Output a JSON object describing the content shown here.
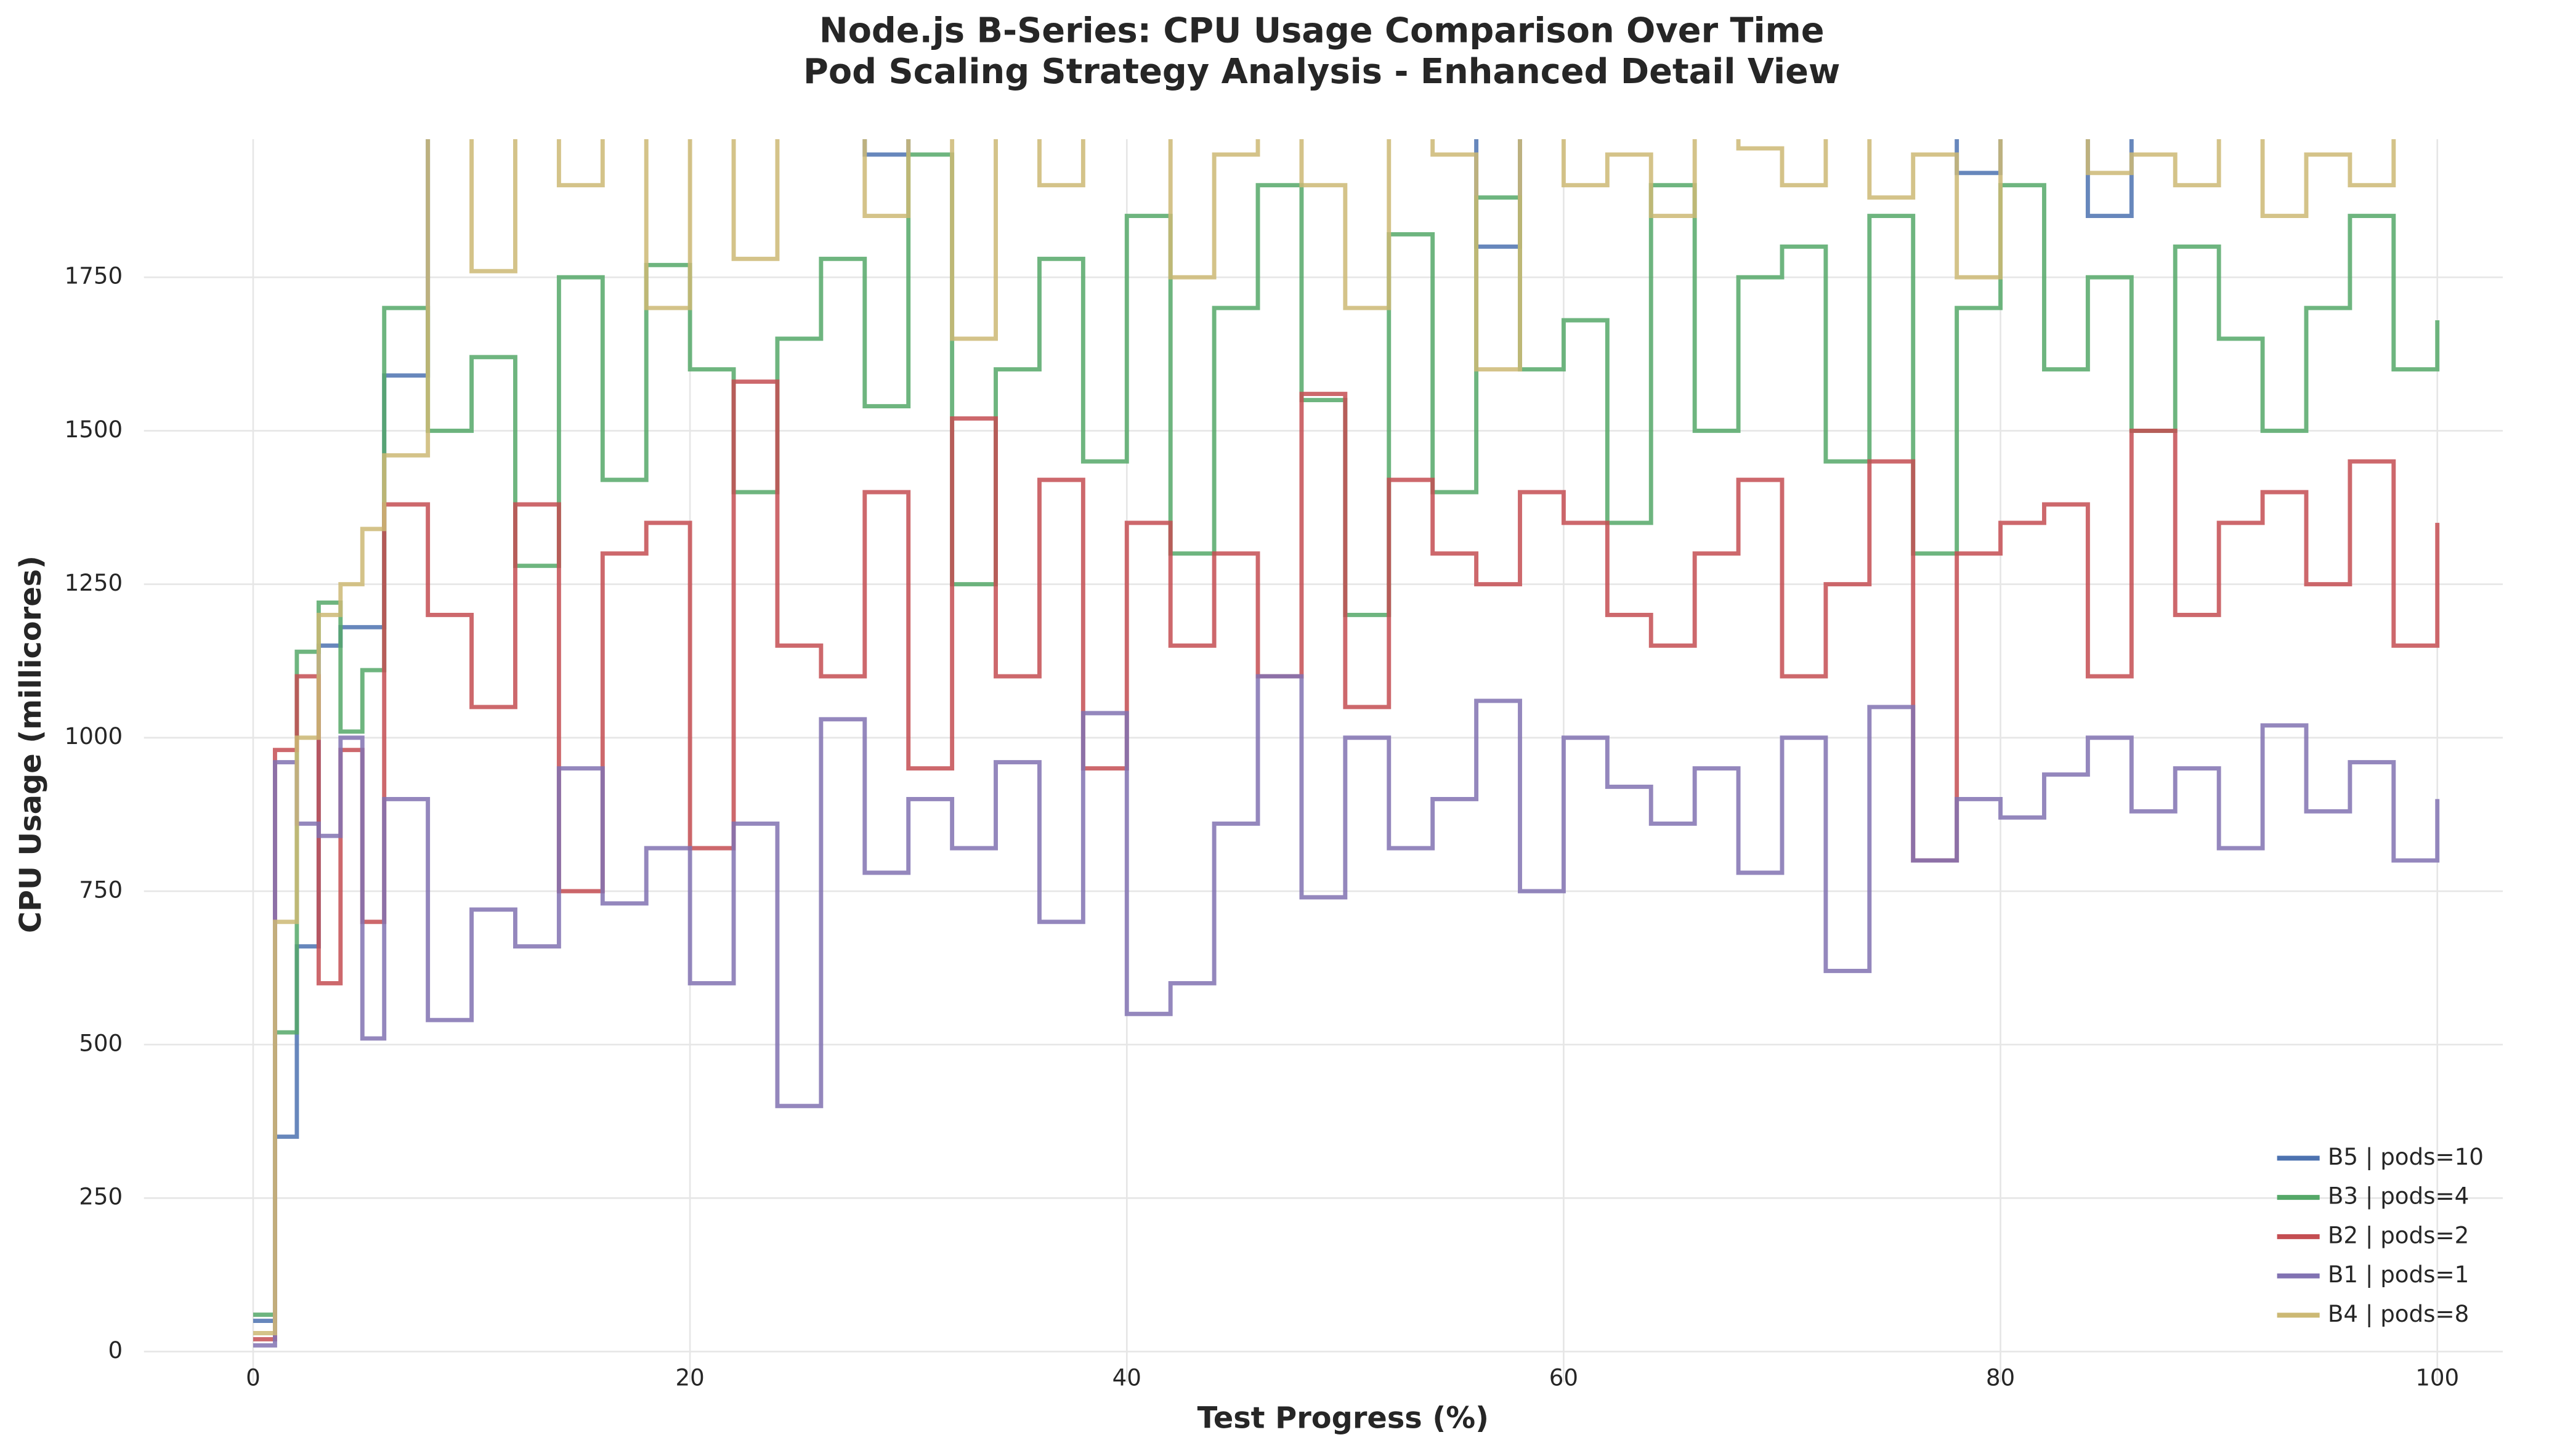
{
  "chart_data": {
    "type": "step",
    "title": "Node.js B-Series: CPU Usage Comparison Over Time",
    "subtitle": "Pod Scaling Strategy Analysis - Enhanced Detail View",
    "x_label": "Test Progress (%)",
    "y_label": "CPU Usage (millicores)",
    "x": [
      0,
      1,
      2,
      3,
      4,
      5,
      6,
      8,
      10,
      12,
      14,
      16,
      18,
      20,
      22,
      24,
      26,
      28,
      30,
      32,
      34,
      36,
      38,
      40,
      42,
      44,
      46,
      48,
      50,
      52,
      54,
      56,
      58,
      60,
      62,
      64,
      66,
      68,
      70,
      72,
      74,
      76,
      78,
      80,
      82,
      84,
      86,
      88,
      90,
      92,
      94,
      96,
      98,
      100
    ],
    "series": [
      {
        "name": "B5 | pods=10",
        "color": "#4c72b0",
        "values": [
          50,
          350,
          660,
          1150,
          1180,
          1180,
          1590,
          2050,
          2100,
          2080,
          2060,
          2100,
          2050,
          2080,
          2070,
          2100,
          2090,
          1950,
          2080,
          2060,
          2100,
          2070,
          2080,
          2050,
          2090,
          2100,
          2070,
          2080,
          2060,
          2080,
          2090,
          1800,
          2050,
          2080,
          2070,
          2090,
          2100,
          2060,
          2080,
          2070,
          2080,
          2050,
          1920,
          2090,
          2070,
          1850,
          2080,
          2090,
          2060,
          2080,
          2100,
          2070,
          2050,
          2080
        ]
      },
      {
        "name": "B3 | pods=4",
        "color": "#55a868",
        "values": [
          60,
          520,
          1140,
          1220,
          1010,
          1110,
          1700,
          1500,
          1620,
          1280,
          1750,
          1420,
          1770,
          1600,
          1400,
          1650,
          1780,
          1540,
          1950,
          1250,
          1600,
          1780,
          1450,
          1850,
          1300,
          1700,
          1900,
          1550,
          1200,
          1820,
          1400,
          1880,
          1600,
          1680,
          1350,
          1900,
          1500,
          1750,
          1800,
          1450,
          1850,
          1300,
          1700,
          1900,
          1600,
          1750,
          1500,
          1800,
          1650,
          1500,
          1700,
          1850,
          1600,
          1680
        ]
      },
      {
        "name": "B2 | pods=2",
        "color": "#c44e52",
        "values": [
          20,
          980,
          1100,
          600,
          980,
          700,
          1380,
          1200,
          1050,
          1380,
          750,
          1300,
          1350,
          820,
          1580,
          1150,
          1100,
          1400,
          950,
          1520,
          1100,
          1420,
          950,
          1350,
          1150,
          1300,
          1100,
          1560,
          1050,
          1420,
          1300,
          1250,
          1400,
          1350,
          1200,
          1150,
          1300,
          1420,
          1100,
          1250,
          1450,
          800,
          1300,
          1350,
          1380,
          1100,
          1500,
          1200,
          1350,
          1400,
          1250,
          1450,
          1150,
          1350
        ]
      },
      {
        "name": "B1 | pods=1",
        "color": "#8172b2",
        "values": [
          10,
          960,
          860,
          840,
          1000,
          510,
          900,
          540,
          720,
          660,
          950,
          730,
          820,
          600,
          860,
          400,
          1030,
          780,
          900,
          820,
          960,
          700,
          1040,
          550,
          600,
          860,
          1100,
          740,
          1000,
          820,
          900,
          1060,
          750,
          1000,
          920,
          860,
          950,
          780,
          1000,
          620,
          1050,
          800,
          900,
          870,
          940,
          1000,
          880,
          950,
          820,
          1020,
          880,
          960,
          800,
          900
        ]
      },
      {
        "name": "B4 | pods=8",
        "color": "#ccb974",
        "values": [
          30,
          700,
          1000,
          1200,
          1250,
          1340,
          1460,
          1990,
          1760,
          1980,
          1900,
          2050,
          1700,
          2000,
          1780,
          2000,
          2100,
          1850,
          2000,
          1650,
          2000,
          1900,
          1990,
          2000,
          1750,
          1950,
          2000,
          1900,
          1700,
          2000,
          1950,
          1600,
          2000,
          1900,
          1950,
          1850,
          2000,
          1960,
          1900,
          2000,
          1880,
          1950,
          1750,
          2000,
          1980,
          1920,
          1950,
          1900,
          2000,
          1850,
          1950,
          1900,
          1980,
          1990
        ]
      }
    ],
    "xlim": [
      -5,
      103
    ],
    "ylim": [
      -50,
      1975
    ],
    "xticks": [
      0,
      20,
      40,
      60,
      80,
      100
    ],
    "yticks": [
      0,
      250,
      500,
      750,
      1000,
      1250,
      1500,
      1750
    ],
    "grid": true,
    "legend": "lower right"
  }
}
